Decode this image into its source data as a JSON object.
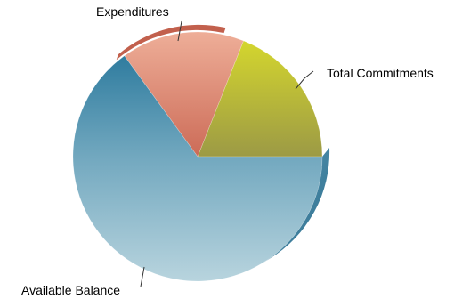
{
  "chart_data": {
    "type": "pie",
    "title": "",
    "slices": [
      {
        "label": "Total Commitments",
        "value": 19,
        "color": "#b8b93a"
      },
      {
        "label": "Expenditures",
        "value": 16,
        "color": "#d9816e"
      },
      {
        "label": "Available Balance",
        "value": 65,
        "color": "#5f9ab4"
      }
    ],
    "legend": "none",
    "style": "3d-gradient"
  }
}
